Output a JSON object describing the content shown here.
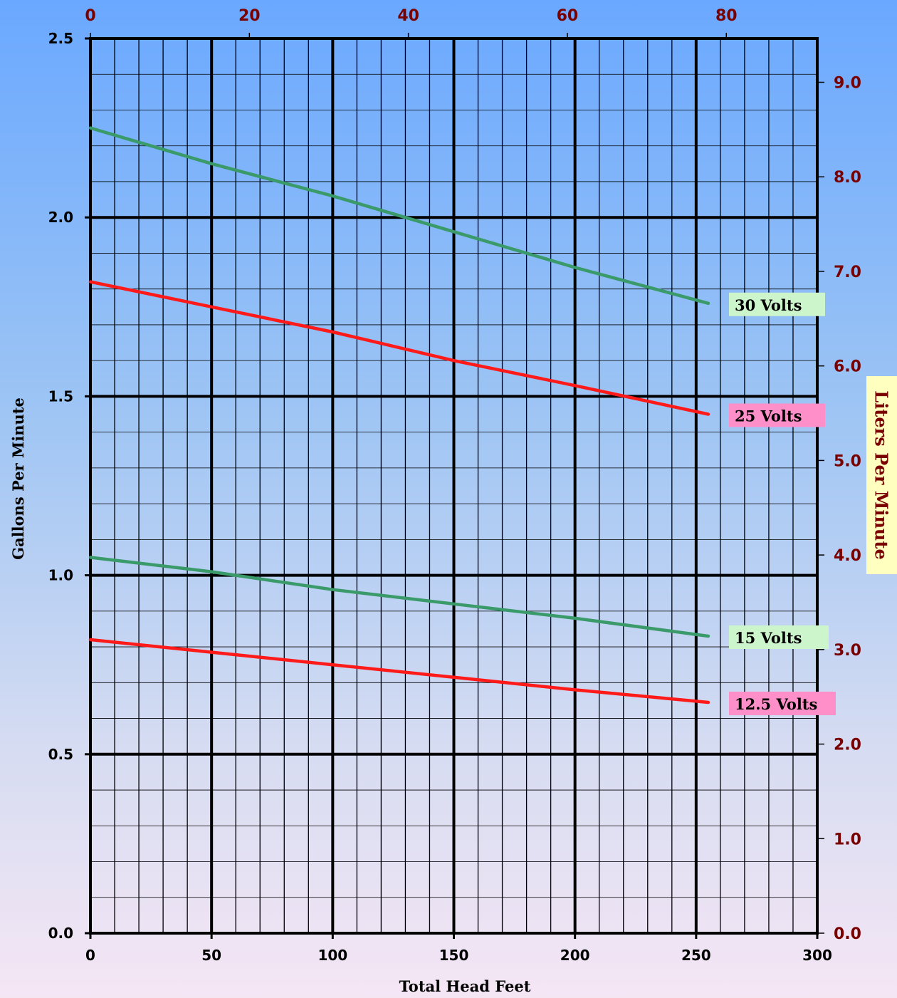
{
  "colors": {
    "grid_minor": "#000000",
    "grid_major": "#000000",
    "right_axis_text": "#7a0000",
    "green_line": "#3a9a6a",
    "red_line": "#ff1a1a",
    "green_label_bg": "#ccf5cc",
    "pink_label_bg": "#ff8fc8",
    "right_title_bg": "#ffffc0"
  },
  "chart_data": {
    "type": "line",
    "xlabel": "Total Head Feet",
    "ylabel": "Gallons Per Minute",
    "ylabel_right": "Liters Per Minute",
    "xlim": [
      0,
      300
    ],
    "ylim": [
      0,
      2.5
    ],
    "x_ticks": [
      "0",
      "50",
      "100",
      "150",
      "200",
      "250",
      "300"
    ],
    "x_tick_values": [
      0,
      50,
      100,
      150,
      200,
      250,
      300
    ],
    "y_ticks": [
      "0.0",
      "0.5",
      "1.0",
      "1.5",
      "2.0",
      "2.5"
    ],
    "y_tick_values": [
      0,
      0.5,
      1.0,
      1.5,
      2.0,
      2.5
    ],
    "x2_ticks": [
      "0",
      "20",
      "40",
      "60",
      "80"
    ],
    "x2_tick_values": [
      0,
      20,
      40,
      60,
      80
    ],
    "x2_range": [
      0,
      91.44
    ],
    "y2_ticks": [
      "0.0",
      "1.0",
      "2.0",
      "3.0",
      "4.0",
      "5.0",
      "6.0",
      "7.0",
      "8.0",
      "9.0"
    ],
    "y2_tick_values": [
      0,
      1,
      2,
      3,
      4,
      5,
      6,
      7,
      8,
      9
    ],
    "y2_range": [
      0,
      9.4635
    ],
    "grid": true,
    "series": [
      {
        "name": "30 Volts",
        "color": "green",
        "x": [
          0,
          50,
          100,
          150,
          200,
          255
        ],
        "y": [
          2.25,
          2.15,
          2.06,
          1.96,
          1.86,
          1.76
        ]
      },
      {
        "name": "25 Volts",
        "color": "red",
        "x": [
          0,
          50,
          100,
          150,
          200,
          255
        ],
        "y": [
          1.82,
          1.75,
          1.68,
          1.6,
          1.53,
          1.45
        ]
      },
      {
        "name": "15 Volts",
        "color": "green",
        "x": [
          0,
          50,
          100,
          150,
          200,
          255
        ],
        "y": [
          1.05,
          1.01,
          0.96,
          0.92,
          0.88,
          0.83
        ]
      },
      {
        "name": "12.5 Volts",
        "color": "red",
        "x": [
          0,
          50,
          100,
          150,
          200,
          255
        ],
        "y": [
          0.82,
          0.785,
          0.75,
          0.715,
          0.68,
          0.645
        ]
      }
    ]
  }
}
